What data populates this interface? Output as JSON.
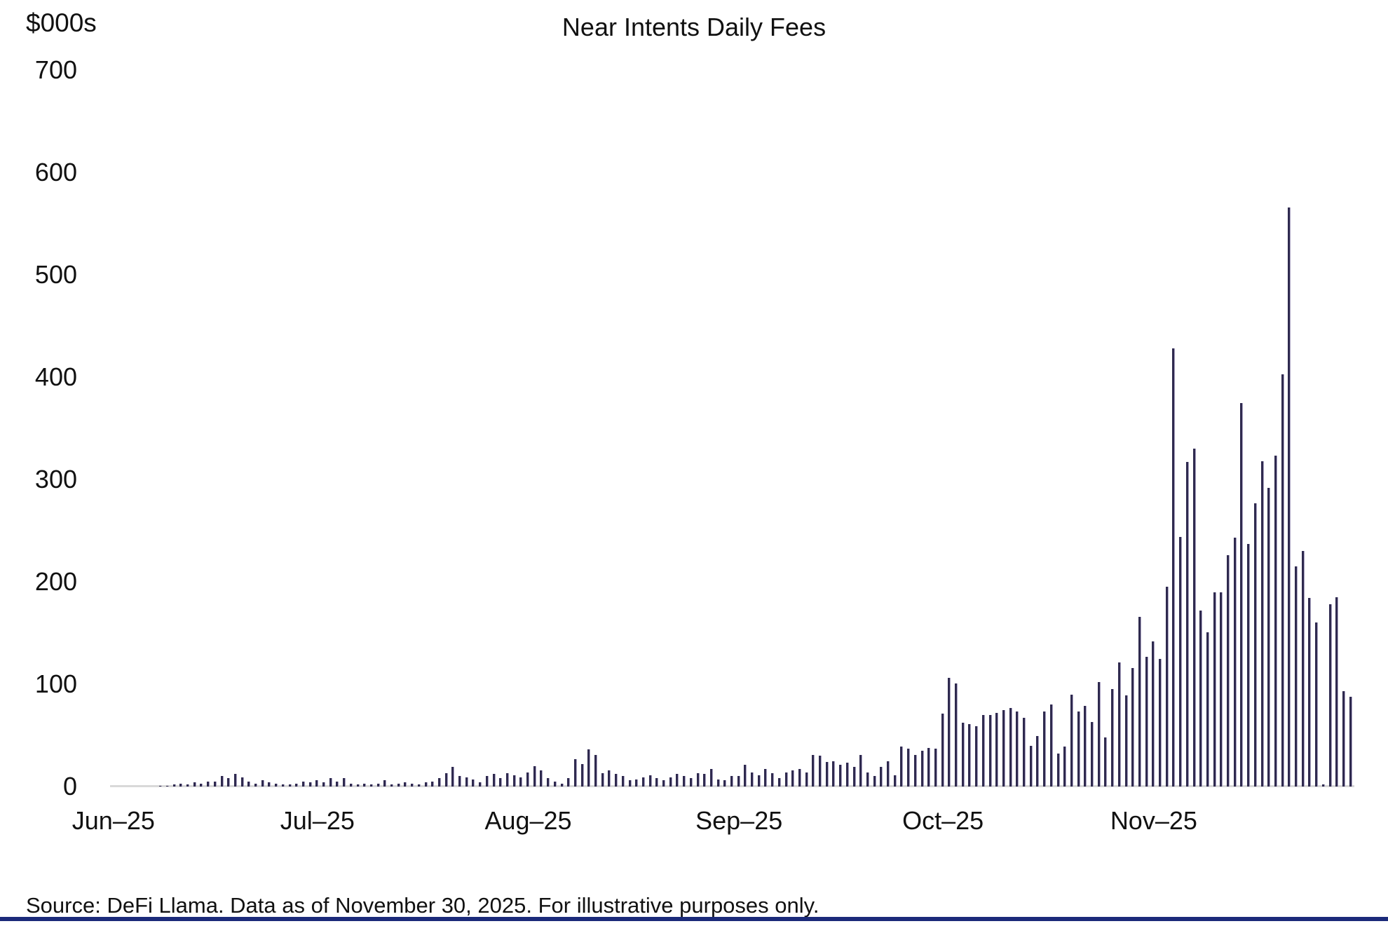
{
  "chart": {
    "unit_label": "$000s",
    "title": "Near Intents Daily Fees",
    "source": "Source: DeFi Llama. Data as of November 30, 2025. For illustrative purposes only."
  },
  "chart_data": {
    "type": "bar",
    "title": "Near Intents Daily Fees",
    "xlabel": "",
    "ylabel": "$000s",
    "ylim": [
      0,
      700
    ],
    "yticks": [
      0,
      100,
      200,
      300,
      400,
      500,
      600,
      700
    ],
    "grid": "off",
    "legend": "none",
    "bar_color": "#2f2a4f",
    "baseline_color": "#d9d9d9",
    "footer_accent_color": "#1b2a7a",
    "categories": [
      "Jun–25",
      "Jul–25",
      "Aug–25",
      "Sep–25",
      "Oct–25",
      "Nov–25"
    ],
    "series_name": "Daily fees ($000s)",
    "months": [
      {
        "label": "Jun–25",
        "values": [
          0,
          0,
          0,
          0,
          0,
          0,
          0,
          1,
          1,
          2,
          3,
          2,
          4,
          3,
          5,
          5,
          10,
          8,
          12,
          9,
          5,
          3,
          6,
          4,
          3,
          2,
          2,
          3,
          5,
          4
        ]
      },
      {
        "label": "Jul–25",
        "values": [
          6,
          4,
          8,
          5,
          8,
          3,
          2,
          3,
          2,
          3,
          6,
          2,
          3,
          4,
          3,
          2,
          4,
          5,
          8,
          13,
          19,
          10,
          9,
          7,
          4,
          10,
          12,
          8,
          13,
          11,
          9
        ]
      },
      {
        "label": "Aug–25",
        "values": [
          14,
          20,
          16,
          8,
          5,
          3,
          8,
          27,
          22,
          36,
          31,
          13,
          16,
          12,
          10,
          6,
          7,
          9,
          11,
          8,
          6,
          9,
          12,
          10,
          8,
          13,
          12,
          17,
          7,
          6,
          10
        ]
      },
      {
        "label": "Sep–25",
        "values": [
          10,
          21,
          14,
          11,
          17,
          13,
          8,
          14,
          16,
          17,
          14,
          31,
          30,
          24,
          25,
          21,
          23,
          19,
          31,
          14,
          10,
          19,
          25,
          11,
          39,
          37,
          31,
          35,
          38,
          37
        ]
      },
      {
        "label": "Oct–25",
        "values": [
          71,
          106,
          101,
          62,
          61,
          59,
          70,
          70,
          72,
          75,
          77,
          73,
          67,
          40,
          49,
          73,
          80,
          32,
          39,
          90,
          73,
          79,
          63,
          102,
          48,
          95,
          121,
          89,
          116,
          166,
          127
        ]
      },
      {
        "label": "Nov–25",
        "values": [
          142,
          125,
          195,
          428,
          244,
          317,
          330,
          172,
          151,
          190,
          190,
          226,
          243,
          375,
          237,
          277,
          318,
          292,
          323,
          403,
          566,
          215,
          230,
          184,
          160,
          2,
          178,
          185,
          93,
          88
        ]
      }
    ]
  }
}
